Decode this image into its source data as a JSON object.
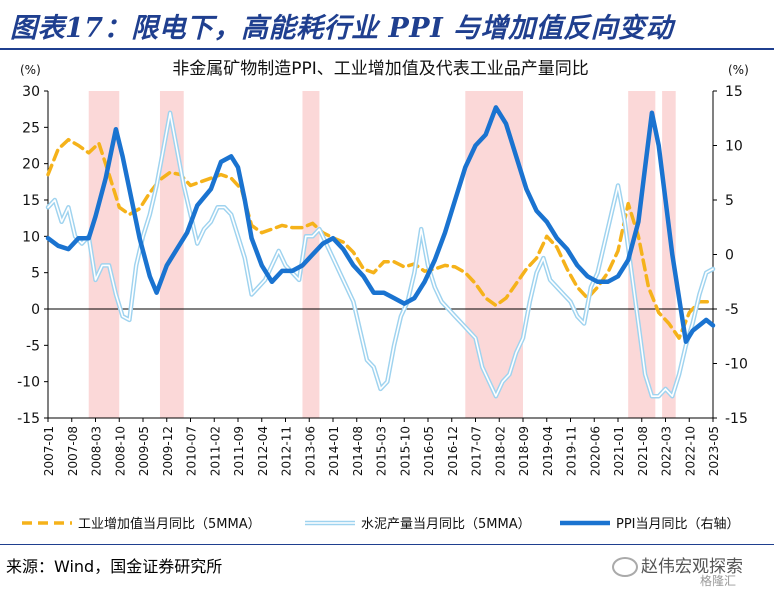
{
  "figure": {
    "title": "图表17：限电下，高能耗行业 PPI 与增加值反向变动",
    "source": "来源：Wind，国金证券研究所",
    "watermark": "赵伟宏观探索",
    "watermark_sub": "格隆汇"
  },
  "chart_data": {
    "type": "line",
    "title": "非金属矿物制造PPI、工业增加值及代表工业品产量同比",
    "y_left": {
      "unit": "(%)",
      "range": [
        -15,
        30
      ],
      "ticks": [
        -15,
        -10,
        -5,
        0,
        5,
        10,
        15,
        20,
        25,
        30
      ]
    },
    "y_right": {
      "unit": "(%)",
      "range": [
        -15,
        15
      ],
      "ticks": [
        -15,
        -10,
        -5,
        0,
        5,
        10,
        15
      ]
    },
    "x_range": [
      "2007-01",
      "2023-05"
    ],
    "x_ticks": [
      "2007-01",
      "2007-08",
      "2008-03",
      "2008-10",
      "2009-05",
      "2009-12",
      "2010-07",
      "2011-02",
      "2011-09",
      "2012-04",
      "2012-11",
      "2013-06",
      "2014-01",
      "2014-08",
      "2015-03",
      "2015-10",
      "2016-05",
      "2016-12",
      "2017-07",
      "2018-02",
      "2018-09",
      "2019-04",
      "2019-11",
      "2020-06",
      "2021-01",
      "2021-08",
      "2022-03",
      "2022-10",
      "2023-05"
    ],
    "shaded_periods": [
      [
        "2008-01",
        "2008-10"
      ],
      [
        "2009-10",
        "2010-05"
      ],
      [
        "2013-04",
        "2013-09"
      ],
      [
        "2017-04",
        "2018-09"
      ],
      [
        "2021-04",
        "2021-12"
      ],
      [
        "2022-02",
        "2022-06"
      ]
    ],
    "colors": {
      "industry": "#f5b21a",
      "cement": "#9fd3ef",
      "ppi": "#1a73d0",
      "shade": "#fbd8d8",
      "title_blue": "#1f3f8f"
    },
    "legend_position": "bottom",
    "series": [
      {
        "name": "工业增加值当月同比（5MMA）",
        "axis": "left",
        "style": "dashed",
        "points": [
          [
            "2007-01",
            18.5
          ],
          [
            "2007-04",
            22
          ],
          [
            "2007-07",
            23.3
          ],
          [
            "2007-10",
            22.5
          ],
          [
            "2008-01",
            21.5
          ],
          [
            "2008-04",
            22.8
          ],
          [
            "2008-07",
            18.5
          ],
          [
            "2008-10",
            14
          ],
          [
            "2009-01",
            13
          ],
          [
            "2009-04",
            13.8
          ],
          [
            "2009-07",
            16
          ],
          [
            "2009-10",
            17.8
          ],
          [
            "2010-01",
            18.8
          ],
          [
            "2010-04",
            18.5
          ],
          [
            "2010-07",
            17
          ],
          [
            "2010-10",
            17.5
          ],
          [
            "2011-01",
            18
          ],
          [
            "2011-04",
            18.5
          ],
          [
            "2011-07",
            18
          ],
          [
            "2011-10",
            16.5
          ],
          [
            "2012-01",
            11.5
          ],
          [
            "2012-04",
            10.5
          ],
          [
            "2012-07",
            11
          ],
          [
            "2012-10",
            11.5
          ],
          [
            "2013-01",
            11.2
          ],
          [
            "2013-04",
            11.2
          ],
          [
            "2013-07",
            11.8
          ],
          [
            "2013-10",
            10.5
          ],
          [
            "2014-01",
            9.8
          ],
          [
            "2014-04",
            9.2
          ],
          [
            "2014-07",
            7.8
          ],
          [
            "2014-10",
            5.5
          ],
          [
            "2015-01",
            5
          ],
          [
            "2015-04",
            6.5
          ],
          [
            "2015-07",
            6.5
          ],
          [
            "2015-10",
            5.8
          ],
          [
            "2016-01",
            6.2
          ],
          [
            "2016-04",
            5.2
          ],
          [
            "2016-07",
            5.5
          ],
          [
            "2016-10",
            6
          ],
          [
            "2017-01",
            5.8
          ],
          [
            "2017-04",
            5
          ],
          [
            "2017-07",
            3.5
          ],
          [
            "2017-10",
            1.5
          ],
          [
            "2018-01",
            0.5
          ],
          [
            "2018-04",
            1.5
          ],
          [
            "2018-07",
            3.5
          ],
          [
            "2018-10",
            5.5
          ],
          [
            "2019-01",
            7
          ],
          [
            "2019-04",
            10
          ],
          [
            "2019-07",
            8.5
          ],
          [
            "2019-10",
            5.5
          ],
          [
            "2020-01",
            3
          ],
          [
            "2020-04",
            1.5
          ],
          [
            "2020-07",
            3
          ],
          [
            "2020-10",
            5
          ],
          [
            "2021-01",
            8
          ],
          [
            "2021-04",
            14.5
          ],
          [
            "2021-07",
            10
          ],
          [
            "2021-10",
            3
          ],
          [
            "2022-01",
            -0.5
          ],
          [
            "2022-04",
            -2
          ],
          [
            "2022-07",
            -4
          ],
          [
            "2022-10",
            -0.5
          ],
          [
            "2023-01",
            1
          ],
          [
            "2023-05",
            1
          ]
        ]
      },
      {
        "name": "水泥产量当月同比（5MMA）",
        "axis": "left",
        "style": "double",
        "points": [
          [
            "2007-01",
            14
          ],
          [
            "2007-03",
            15
          ],
          [
            "2007-05",
            12
          ],
          [
            "2007-07",
            14
          ],
          [
            "2007-09",
            10
          ],
          [
            "2007-11",
            9
          ],
          [
            "2008-01",
            10
          ],
          [
            "2008-03",
            4
          ],
          [
            "2008-05",
            6
          ],
          [
            "2008-07",
            6
          ],
          [
            "2008-09",
            2
          ],
          [
            "2008-11",
            -1
          ],
          [
            "2009-01",
            -1.5
          ],
          [
            "2009-03",
            6
          ],
          [
            "2009-05",
            10
          ],
          [
            "2009-07",
            13
          ],
          [
            "2009-09",
            17
          ],
          [
            "2009-11",
            22
          ],
          [
            "2010-01",
            27
          ],
          [
            "2010-03",
            22
          ],
          [
            "2010-05",
            17
          ],
          [
            "2010-07",
            13
          ],
          [
            "2010-09",
            9
          ],
          [
            "2010-11",
            11
          ],
          [
            "2011-01",
            12
          ],
          [
            "2011-03",
            14
          ],
          [
            "2011-05",
            14
          ],
          [
            "2011-07",
            13
          ],
          [
            "2011-09",
            10
          ],
          [
            "2011-11",
            7
          ],
          [
            "2012-01",
            2
          ],
          [
            "2012-03",
            3
          ],
          [
            "2012-05",
            4
          ],
          [
            "2012-07",
            6
          ],
          [
            "2012-09",
            8
          ],
          [
            "2012-11",
            6
          ],
          [
            "2013-01",
            5
          ],
          [
            "2013-03",
            4
          ],
          [
            "2013-05",
            10
          ],
          [
            "2013-07",
            10
          ],
          [
            "2013-09",
            11
          ],
          [
            "2013-11",
            9
          ],
          [
            "2014-01",
            7
          ],
          [
            "2014-03",
            5
          ],
          [
            "2014-05",
            3
          ],
          [
            "2014-07",
            1
          ],
          [
            "2014-09",
            -3
          ],
          [
            "2014-11",
            -7
          ],
          [
            "2015-01",
            -8
          ],
          [
            "2015-03",
            -11
          ],
          [
            "2015-05",
            -10
          ],
          [
            "2015-07",
            -5
          ],
          [
            "2015-09",
            -1
          ],
          [
            "2015-11",
            1
          ],
          [
            "2016-01",
            5
          ],
          [
            "2016-03",
            11
          ],
          [
            "2016-05",
            6
          ],
          [
            "2016-07",
            3
          ],
          [
            "2016-09",
            1
          ],
          [
            "2016-11",
            0
          ],
          [
            "2017-01",
            -1
          ],
          [
            "2017-03",
            -2
          ],
          [
            "2017-05",
            -3
          ],
          [
            "2017-07",
            -4
          ],
          [
            "2017-09",
            -8
          ],
          [
            "2017-11",
            -10
          ],
          [
            "2018-01",
            -12
          ],
          [
            "2018-03",
            -10
          ],
          [
            "2018-05",
            -9
          ],
          [
            "2018-07",
            -6
          ],
          [
            "2018-09",
            -4
          ],
          [
            "2018-11",
            1
          ],
          [
            "2019-01",
            5
          ],
          [
            "2019-03",
            7
          ],
          [
            "2019-05",
            4
          ],
          [
            "2019-07",
            3
          ],
          [
            "2019-09",
            2
          ],
          [
            "2019-11",
            1
          ],
          [
            "2020-01",
            -1
          ],
          [
            "2020-03",
            -2
          ],
          [
            "2020-05",
            3
          ],
          [
            "2020-07",
            5
          ],
          [
            "2020-09",
            9
          ],
          [
            "2020-11",
            13
          ],
          [
            "2021-01",
            17
          ],
          [
            "2021-03",
            12
          ],
          [
            "2021-05",
            5
          ],
          [
            "2021-07",
            -2
          ],
          [
            "2021-09",
            -9
          ],
          [
            "2021-11",
            -12
          ],
          [
            "2022-01",
            -12
          ],
          [
            "2022-03",
            -11
          ],
          [
            "2022-05",
            -12
          ],
          [
            "2022-07",
            -9
          ],
          [
            "2022-09",
            -5
          ],
          [
            "2022-11",
            -2
          ],
          [
            "2023-01",
            2
          ],
          [
            "2023-03",
            5
          ],
          [
            "2023-05",
            5.5
          ]
        ]
      },
      {
        "name": "PPI当月同比（右轴）",
        "axis": "right",
        "style": "solid",
        "points": [
          [
            "2007-01",
            1.5
          ],
          [
            "2007-04",
            0.8
          ],
          [
            "2007-07",
            0.5
          ],
          [
            "2007-10",
            1.5
          ],
          [
            "2008-01",
            1.5
          ],
          [
            "2008-03",
            3.5
          ],
          [
            "2008-06",
            7
          ],
          [
            "2008-09",
            11.5
          ],
          [
            "2008-11",
            9
          ],
          [
            "2009-01",
            6
          ],
          [
            "2009-04",
            1.5
          ],
          [
            "2009-07",
            -2
          ],
          [
            "2009-09",
            -3.5
          ],
          [
            "2009-12",
            -1
          ],
          [
            "2010-03",
            0.5
          ],
          [
            "2010-06",
            2
          ],
          [
            "2010-09",
            4.5
          ],
          [
            "2011-01",
            6
          ],
          [
            "2011-04",
            8.5
          ],
          [
            "2011-07",
            9
          ],
          [
            "2011-09",
            8
          ],
          [
            "2011-11",
            5
          ],
          [
            "2012-01",
            1.5
          ],
          [
            "2012-04",
            -1
          ],
          [
            "2012-07",
            -2.5
          ],
          [
            "2012-10",
            -1.5
          ],
          [
            "2013-01",
            -1.5
          ],
          [
            "2013-04",
            -1
          ],
          [
            "2013-07",
            0
          ],
          [
            "2013-10",
            1
          ],
          [
            "2014-01",
            1.5
          ],
          [
            "2014-04",
            0.5
          ],
          [
            "2014-07",
            -1
          ],
          [
            "2014-10",
            -2
          ],
          [
            "2015-01",
            -3.5
          ],
          [
            "2015-04",
            -3.5
          ],
          [
            "2015-07",
            -4
          ],
          [
            "2015-10",
            -4.5
          ],
          [
            "2016-01",
            -4
          ],
          [
            "2016-04",
            -2.5
          ],
          [
            "2016-07",
            -0.5
          ],
          [
            "2016-10",
            2
          ],
          [
            "2017-01",
            5
          ],
          [
            "2017-04",
            8
          ],
          [
            "2017-07",
            10
          ],
          [
            "2017-10",
            11
          ],
          [
            "2018-01",
            13.5
          ],
          [
            "2018-04",
            12
          ],
          [
            "2018-07",
            9
          ],
          [
            "2018-10",
            6
          ],
          [
            "2019-01",
            4
          ],
          [
            "2019-04",
            3
          ],
          [
            "2019-07",
            1.5
          ],
          [
            "2019-10",
            0.5
          ],
          [
            "2020-01",
            -1
          ],
          [
            "2020-04",
            -2
          ],
          [
            "2020-07",
            -2.5
          ],
          [
            "2020-10",
            -2.5
          ],
          [
            "2021-01",
            -2
          ],
          [
            "2021-04",
            -0.5
          ],
          [
            "2021-07",
            3
          ],
          [
            "2021-09",
            8
          ],
          [
            "2021-11",
            13
          ],
          [
            "2022-01",
            10
          ],
          [
            "2022-03",
            5
          ],
          [
            "2022-05",
            0
          ],
          [
            "2022-07",
            -4
          ],
          [
            "2022-09",
            -8
          ],
          [
            "2022-11",
            -7
          ],
          [
            "2023-01",
            -6.5
          ],
          [
            "2023-03",
            -6
          ],
          [
            "2023-05",
            -6.5
          ]
        ]
      }
    ]
  }
}
